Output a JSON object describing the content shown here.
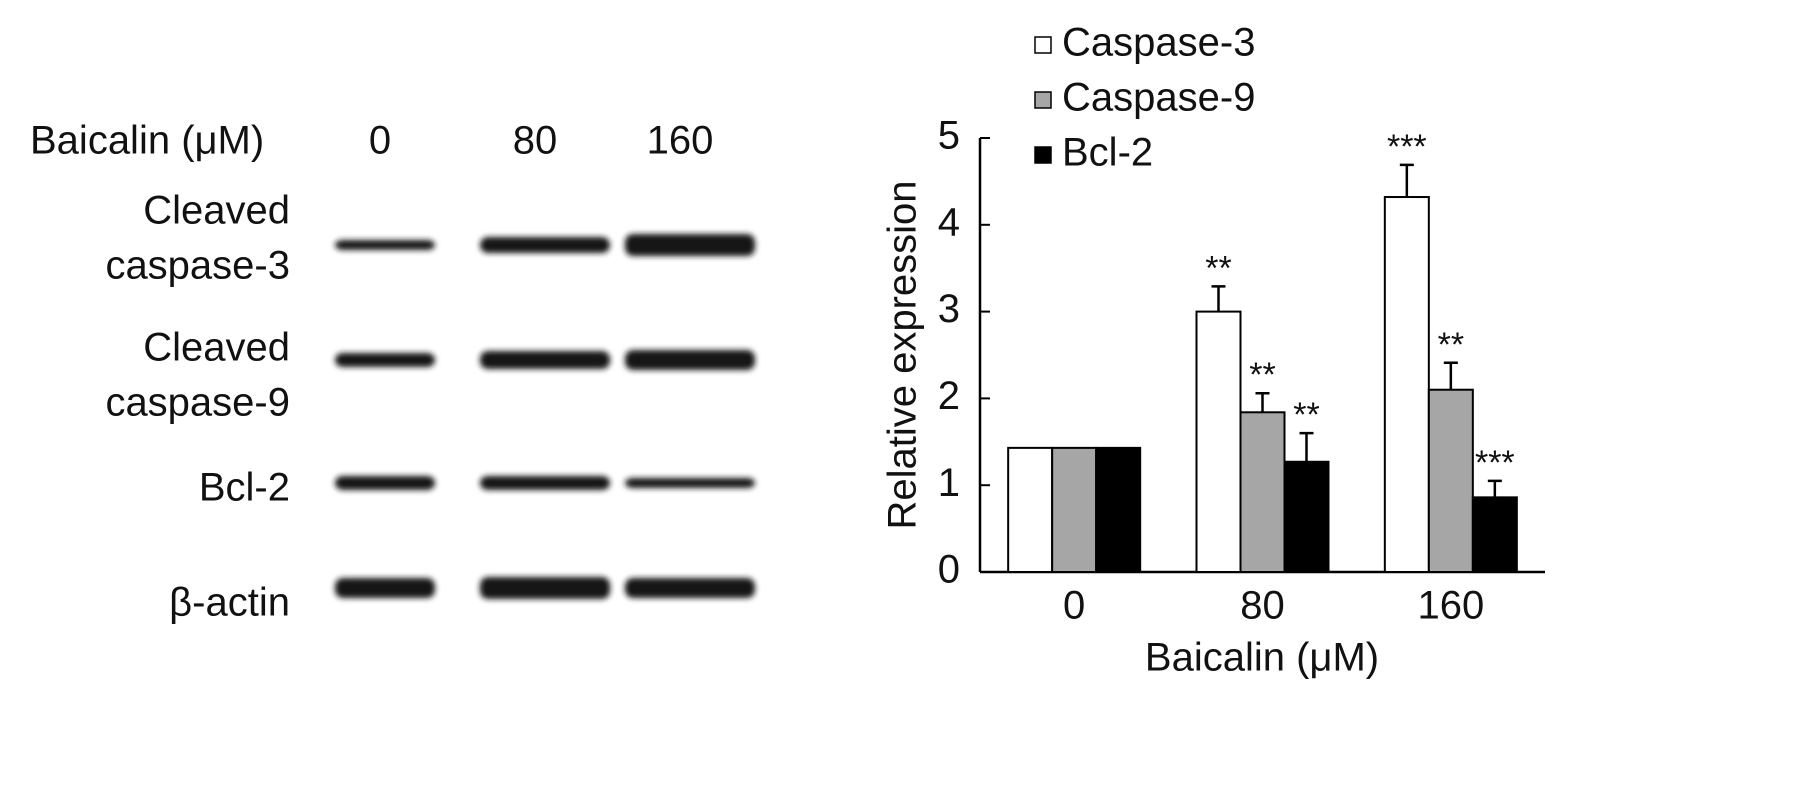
{
  "blot": {
    "header": "Baicalin (μM)",
    "lanes": [
      "0",
      "80",
      "160"
    ],
    "rows": [
      {
        "lines": [
          "Cleaved",
          "caspase-3"
        ]
      },
      {
        "lines": [
          "Cleaved",
          "caspase-9"
        ]
      },
      {
        "lines": [
          "Bcl-2"
        ]
      },
      {
        "lines": [
          "β-actin"
        ]
      }
    ]
  },
  "chart_data": {
    "type": "bar",
    "ylabel": "Relative expression",
    "xlabel": "Baicalin (μM)",
    "categories": [
      "0",
      "80",
      "160"
    ],
    "series": [
      {
        "name": "Caspase-3",
        "color": "#ffffff",
        "values": [
          1.43,
          3.0,
          4.32
        ],
        "errors": [
          null,
          0.29,
          0.37
        ],
        "annotations": [
          null,
          "**",
          "***"
        ]
      },
      {
        "name": "Caspase-9",
        "color": "#a6a6a6",
        "values": [
          1.43,
          1.84,
          2.1
        ],
        "errors": [
          null,
          0.22,
          0.31
        ],
        "annotations": [
          null,
          "**",
          "**"
        ]
      },
      {
        "name": "Bcl-2",
        "color": "#000000",
        "values": [
          1.43,
          1.27,
          0.86
        ],
        "errors": [
          null,
          0.33,
          0.19
        ],
        "annotations": [
          null,
          "**",
          "***"
        ]
      }
    ],
    "ylim": [
      0,
      5
    ],
    "yticks": [
      0,
      1,
      2,
      3,
      4,
      5
    ],
    "grid": false,
    "legend": "top-left"
  }
}
